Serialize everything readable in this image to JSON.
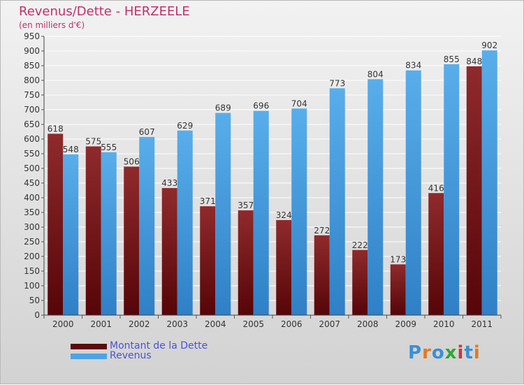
{
  "header": {
    "title": "Revenus/Dette - HERZEELE",
    "subtitle": "(en milliers d'€)"
  },
  "legend": {
    "dette_label": "Montant de la Dette",
    "revenus_label": "Revenus"
  },
  "logo": {
    "text": "Proxiti",
    "colors": [
      "#3a8fd6",
      "#e07b1f",
      "#3a8fd6",
      "#2ea836",
      "#c33a3a",
      "#3a8fd6",
      "#e07b1f"
    ]
  },
  "colors": {
    "dette": "#7a1a1c",
    "revenus": "#4da3e6",
    "title": "#c0306a",
    "legend_text": "#4a52d8"
  },
  "chart_data": {
    "type": "bar",
    "categories": [
      "2000",
      "2001",
      "2002",
      "2003",
      "2004",
      "2005",
      "2006",
      "2007",
      "2008",
      "2009",
      "2010",
      "2011"
    ],
    "series": [
      {
        "name": "Montant de la Dette",
        "values": [
          618,
          575,
          506,
          433,
          371,
          357,
          324,
          272,
          222,
          173,
          416,
          848
        ]
      },
      {
        "name": "Revenus",
        "values": [
          548,
          555,
          607,
          629,
          689,
          696,
          704,
          773,
          804,
          834,
          855,
          902
        ]
      }
    ],
    "ylim": [
      0,
      950
    ],
    "ytick_step": 50,
    "grid": true
  }
}
